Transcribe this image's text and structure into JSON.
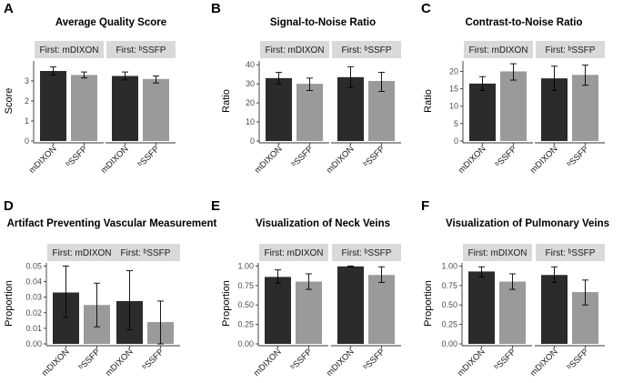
{
  "figure": {
    "categories": [
      "mDIXON",
      "bSSFP"
    ],
    "category_display": [
      "mDIXON",
      "ᵇSSFP"
    ],
    "colors": {
      "mDIXON": "#2b2b2b",
      "bSSFP": "#9a9a9a",
      "strip": "#d9d9d9",
      "errorbar": "#000000",
      "axis": "#333333"
    }
  },
  "chart_data": [
    {
      "letter": "A",
      "type": "bar",
      "title": "Average Quality Score",
      "ylabel": "Score",
      "ylim": [
        0,
        4
      ],
      "yticks": [
        0,
        1,
        2,
        3
      ],
      "tick_labels": [
        "0",
        "1",
        "2",
        "3"
      ],
      "facets": [
        {
          "label": "First: mDIXON",
          "values": [
            3.5,
            3.3
          ],
          "errors": [
            [
              3.3,
              3.7
            ],
            [
              3.15,
              3.45
            ]
          ]
        },
        {
          "label": "First: ᵇSSFP",
          "values": [
            3.25,
            3.1
          ],
          "errors": [
            [
              3.05,
              3.45
            ],
            [
              2.9,
              3.25
            ]
          ]
        }
      ]
    },
    {
      "letter": "B",
      "type": "bar",
      "title": "Signal-to-Noise Ratio",
      "ylabel": "Ratio",
      "ylim": [
        0,
        42
      ],
      "yticks": [
        0,
        10,
        20,
        30,
        40
      ],
      "tick_labels": [
        "0",
        "10",
        "20",
        "30",
        "40"
      ],
      "facets": [
        {
          "label": "First: mDIXON",
          "values": [
            33,
            30
          ],
          "errors": [
            [
              30,
              36
            ],
            [
              26.5,
              33
            ]
          ]
        },
        {
          "label": "First: ᵇSSFP",
          "values": [
            33.5,
            31.5
          ],
          "errors": [
            [
              28,
              39
            ],
            [
              26,
              36
            ]
          ]
        }
      ]
    },
    {
      "letter": "C",
      "type": "bar",
      "title": "Contrast-to-Noise Ratio",
      "ylabel": "Ratio",
      "ylim": [
        0,
        23
      ],
      "yticks": [
        0,
        5,
        10,
        15,
        20
      ],
      "tick_labels": [
        "0",
        "5",
        "10",
        "15",
        "20"
      ],
      "facets": [
        {
          "label": "First: mDIXON",
          "values": [
            16.5,
            20
          ],
          "errors": [
            [
              14.5,
              18.5
            ],
            [
              17.5,
              22.2
            ]
          ]
        },
        {
          "label": "First: ᵇSSFP",
          "values": [
            18,
            19
          ],
          "errors": [
            [
              14.5,
              21.5
            ],
            [
              16,
              21.8
            ]
          ]
        }
      ]
    },
    {
      "letter": "D",
      "type": "bar",
      "title": "Artifact Preventing Vascular Measurement",
      "ylabel": "Proportion",
      "ylim": [
        0,
        0.052
      ],
      "yticks": [
        0,
        0.01,
        0.02,
        0.03,
        0.04,
        0.05
      ],
      "tick_labels": [
        "0.00",
        "0.01",
        "0.02",
        "0.03",
        "0.04",
        "0.05"
      ],
      "facets": [
        {
          "label": "First: mDIXON",
          "values": [
            0.033,
            0.025
          ],
          "errors": [
            [
              0.017,
              0.05
            ],
            [
              0.011,
              0.039
            ]
          ]
        },
        {
          "label": "First: ᵇSSFP",
          "values": [
            0.0275,
            0.014
          ],
          "errors": [
            [
              0.009,
              0.047
            ],
            [
              0.0,
              0.0275
            ]
          ]
        }
      ]
    },
    {
      "letter": "E",
      "type": "bar",
      "title": "Visualization of Neck Veins",
      "ylabel": "Proportion",
      "ylim": [
        0,
        1.04
      ],
      "yticks": [
        0,
        0.25,
        0.5,
        0.75,
        1.0
      ],
      "tick_labels": [
        "0.00",
        "0.25",
        "0.50",
        "0.75",
        "1.00"
      ],
      "facets": [
        {
          "label": "First: mDIXON",
          "values": [
            0.86,
            0.8
          ],
          "errors": [
            [
              0.78,
              0.95
            ],
            [
              0.7,
              0.9
            ]
          ]
        },
        {
          "label": "First: ᵇSSFP",
          "values": [
            0.995,
            0.885
          ],
          "errors": [
            [
              0.99,
              1.0
            ],
            [
              0.79,
              0.99
            ]
          ]
        }
      ]
    },
    {
      "letter": "F",
      "type": "bar",
      "title": "Visualization of Pulmonary Veins",
      "ylabel": "Proportion",
      "ylim": [
        0,
        1.04
      ],
      "yticks": [
        0,
        0.25,
        0.5,
        0.75,
        1.0
      ],
      "tick_labels": [
        "0.00",
        "0.25",
        "0.50",
        "0.75",
        "1.00"
      ],
      "facets": [
        {
          "label": "First: mDIXON",
          "values": [
            0.93,
            0.8
          ],
          "errors": [
            [
              0.86,
              0.99
            ],
            [
              0.7,
              0.9
            ]
          ]
        },
        {
          "label": "First: ᵇSSFP",
          "values": [
            0.885,
            0.665
          ],
          "errors": [
            [
              0.79,
              0.99
            ],
            [
              0.5,
              0.82
            ]
          ]
        }
      ]
    }
  ]
}
